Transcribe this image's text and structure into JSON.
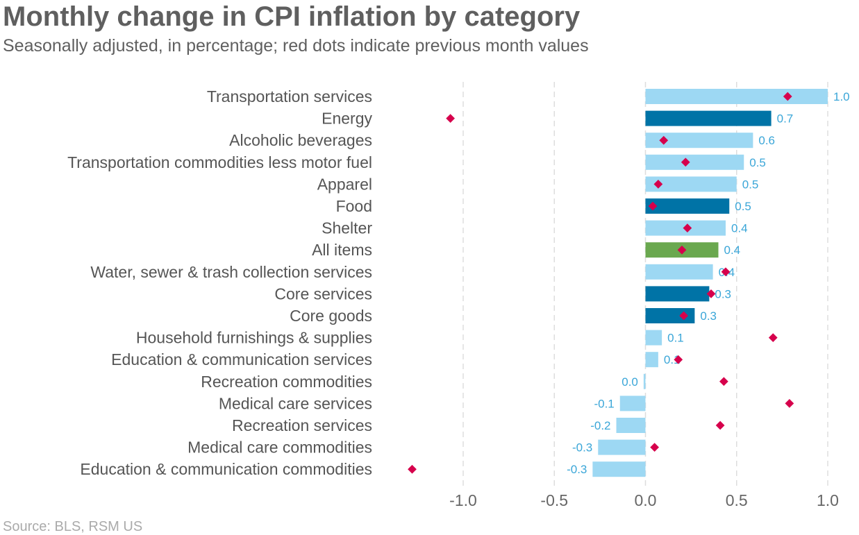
{
  "chart_data": {
    "type": "bar",
    "orientation": "horizontal",
    "title": "Monthly change in CPI inflation by category",
    "subtitle": "Seasonally adjusted, in percentage; red dots indicate previous month values",
    "source": "Source: BLS, RSM US",
    "xlim": [
      -1.2,
      1.1
    ],
    "xticks": [
      "-1.0",
      "-0.5",
      "0.0",
      "0.5",
      "1.0"
    ],
    "xtick_values": [
      -1.0,
      -0.5,
      0.0,
      0.5,
      1.0
    ],
    "grid": "vertical dashed",
    "categories": [
      "Transportation services",
      "Energy",
      "Alcoholic beverages",
      "Transportation commodities less motor fuel",
      "Apparel",
      "Food",
      "Shelter",
      "All items",
      "Water, sewer & trash collection services",
      "Core services",
      "Core goods",
      "Household furnishings & supplies",
      "Education & communication services",
      "Recreation commodities",
      "Medical care services",
      "Recreation services",
      "Medical care commodities",
      "Education & communication commodities"
    ],
    "values": [
      1.0,
      0.69,
      0.59,
      0.54,
      0.5,
      0.46,
      0.44,
      0.4,
      0.37,
      0.35,
      0.27,
      0.09,
      0.07,
      -0.01,
      -0.14,
      -0.16,
      -0.26,
      -0.29
    ],
    "labels": [
      "1.0",
      "0.7",
      "0.6",
      "0.5",
      "0.5",
      "0.5",
      "0.4",
      "0.4",
      "0.4",
      "0.3",
      "0.3",
      "0.1",
      "0.1",
      "0.0",
      "-0.1",
      "-0.2",
      "-0.3",
      "-0.3"
    ],
    "previous_month": [
      0.78,
      -1.07,
      0.1,
      0.22,
      0.07,
      0.04,
      0.23,
      0.2,
      0.44,
      0.36,
      0.21,
      0.7,
      0.18,
      0.43,
      0.79,
      0.41,
      0.05,
      -1.28
    ],
    "bar_colors": [
      "light",
      "dark",
      "light",
      "light",
      "light",
      "dark",
      "light",
      "green",
      "light",
      "dark",
      "dark",
      "light",
      "light",
      "light",
      "light",
      "light",
      "light",
      "light"
    ],
    "colors": {
      "light": "#9dd8f3",
      "dark": "#0073a6",
      "green": "#6aa84f",
      "previous_marker": "#d6004c",
      "label": "#3aa6d8"
    }
  }
}
